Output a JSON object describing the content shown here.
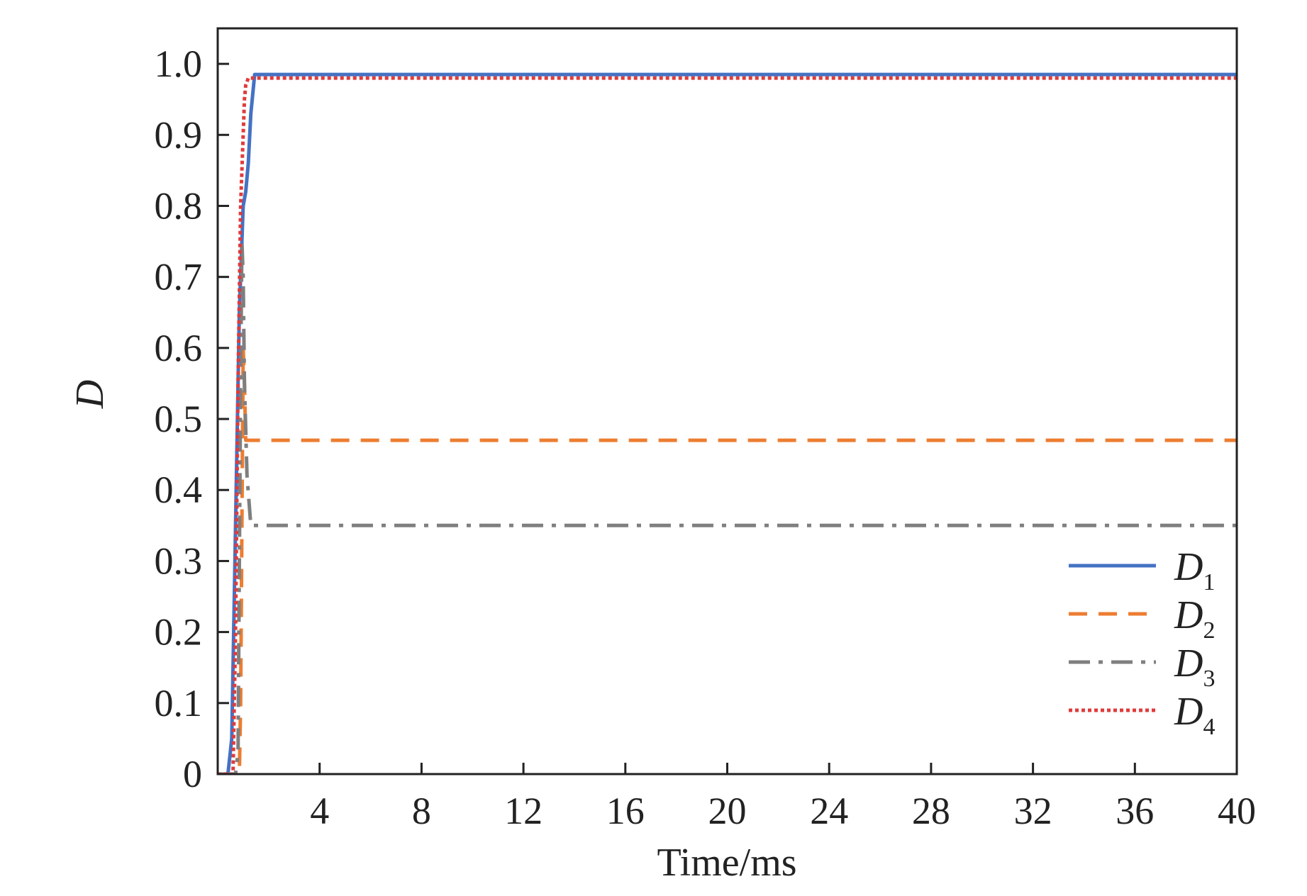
{
  "chart_data": {
    "type": "line",
    "title": "",
    "xlabel": "Time/ms",
    "ylabel": "D",
    "xlim": [
      0,
      40
    ],
    "ylim": [
      0,
      1.05
    ],
    "x_ticks": [
      4,
      8,
      12,
      16,
      20,
      24,
      28,
      32,
      36,
      40
    ],
    "x_tick_labels": [
      "4",
      "8",
      "12",
      "16",
      "20",
      "24",
      "28",
      "32",
      "36",
      "40"
    ],
    "y_ticks": [
      0,
      0.1,
      0.2,
      0.3,
      0.4,
      0.5,
      0.6,
      0.7,
      0.8,
      0.9,
      1.0
    ],
    "y_tick_labels": [
      "0",
      "0.1",
      "0.2",
      "0.3",
      "0.4",
      "0.5",
      "0.6",
      "0.7",
      "0.8",
      "0.9",
      "1.0"
    ],
    "grid": false,
    "legend_position": "bottom-right",
    "series": [
      {
        "name": "D1",
        "legend_main": "D",
        "legend_sub": "1",
        "color": "#4472c4",
        "style": "solid",
        "x": [
          0,
          0.4,
          0.55,
          0.65,
          0.75,
          0.85,
          1.0,
          1.1,
          1.2,
          1.3,
          1.45,
          40
        ],
        "y": [
          0,
          0,
          0.05,
          0.25,
          0.45,
          0.65,
          0.8,
          0.82,
          0.86,
          0.93,
          0.985,
          0.985
        ]
      },
      {
        "name": "D2",
        "legend_main": "D",
        "legend_sub": "2",
        "color": "#ed7d31",
        "style": "dashed",
        "x": [
          0,
          0.85,
          0.9,
          0.95,
          1.0,
          1.05,
          1.1,
          40
        ],
        "y": [
          0,
          0,
          0.1,
          0.35,
          0.6,
          0.55,
          0.47,
          0.47
        ]
      },
      {
        "name": "D3",
        "legend_main": "D",
        "legend_sub": "3",
        "color": "#7f7f7f",
        "style": "dashdot",
        "x": [
          0,
          0.7,
          0.8,
          0.85,
          0.9,
          0.95,
          1.0,
          1.05,
          1.15,
          1.3,
          40
        ],
        "y": [
          0,
          0,
          0.03,
          0.3,
          0.55,
          0.75,
          0.7,
          0.55,
          0.42,
          0.35,
          0.35
        ]
      },
      {
        "name": "D4",
        "legend_main": "D",
        "legend_sub": "4",
        "color": "#e03b3b",
        "style": "dotted",
        "x": [
          0,
          0.6,
          0.7,
          0.8,
          0.9,
          1.0,
          1.05,
          1.1,
          1.2,
          40
        ],
        "y": [
          0,
          0,
          0.2,
          0.55,
          0.8,
          0.9,
          0.95,
          0.97,
          0.98,
          0.98
        ]
      }
    ]
  }
}
